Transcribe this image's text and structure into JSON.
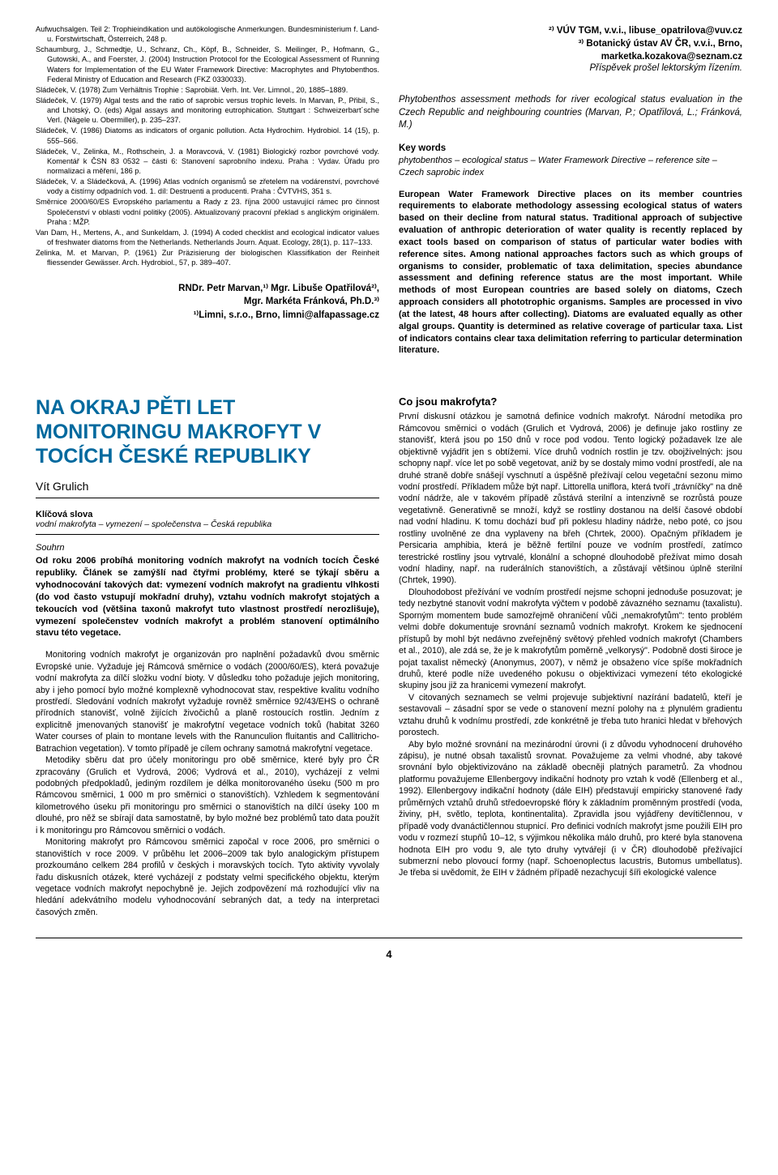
{
  "left_col": {
    "references": [
      "Aufwuchsalgen. Teil 2: Trophieindikation und autökologische Anmerkungen. Bundesministerium f. Land- u. Forstwirtschaft, Österreich, 248 p.",
      "Schaumburg, J., Schmedtje, U., Schranz, Ch., Köpf, B., Schneider, S. Meilinger, P., Hofmann, G., Gutowski, A., and Foerster, J. (2004) Instruction Protocol for the Ecological Assessment of Running Waters for Implementation of the EU Water Framework Directive: Macrophytes and Phytobenthos. Federal Ministry of Education and Research (FKZ 0330033).",
      "Sládeček, V. (1978) Zum Verhältnis Trophie : Saprobiät. Verh. Int. Ver. Limnol., 20, 1885–1889.",
      "Sládeček, V. (1979) Algal tests and the ratio of saprobic versus trophic levels. In Marvan, P., Přibil, S., and Lhotský, O. (eds) Algal assays and monitoring eutrophication. Stuttgart : Schweizerbart´sche Verl. (Nägele u. Obermiller), p. 235–237.",
      "Sládeček, V. (1986) Diatoms as indicators of organic pollution. Acta Hydrochim. Hydrobiol. 14 (15), p. 555–566.",
      "Sládeček, V., Zelinka, M., Rothschein, J. a Moravcová, V. (1981) Biologický rozbor povrchové vody. Komentář k ČSN 83 0532 – části 6: Stanovení saprobního indexu. Praha : Vydav. Úřadu pro normalizaci a měření, 186 p.",
      "Sládeček, V. a Sládečková, A. (1996) Atlas vodních organismů se zřetelem na vodárenství, povrchové vody a čistírny odpadních vod. 1. díl: Destruenti a producenti. Praha : ČVTVHS, 351 s.",
      "Směrnice 2000/60/ES Evropského parlamentu a Rady z 23. října 2000 ustavující rámec pro činnost Společenství v oblasti vodní politiky (2005). Aktualizovaný pracovní překlad s anglickým originálem. Praha : MŽP.",
      "Van Dam, H., Mertens, A., and Sunkeldam, J. (1994) A coded checklist and ecological indicator values of freshwater diatoms from the Netherlands. Netherlands Journ. Aquat. Ecology, 28(1), p. 117–133.",
      "Zelinka, M. et Marvan, P. (1961) Zur Präzisierung der biologischen Klassifikation der Reinheit fliessender Gewässer. Arch. Hydrobiol., 57, p. 389–407."
    ],
    "authors_line1": "RNDr. Petr Marvan,¹⁾ Mgr. Libuše Opatřilová²⁾,",
    "authors_line2": "Mgr. Markéta Fránková, Ph.D.³⁾",
    "authors_line3": "¹⁾Limni, s.r.o., Brno, limni@alfapassage.cz"
  },
  "right_col": {
    "affil1": "²⁾ VÚV TGM, v.v.i., libuse_opatrilova@vuv.cz",
    "affil2": "³⁾ Botanický ústav AV ČR, v.v.i., Brno,",
    "affil3": "marketka.kozakova@seznam.cz",
    "affil4": "Příspěvek prošel lektorským řízením.",
    "eng_title": "Phytobenthos assessment methods for river ecological status evaluation in the Czech Republic and neighbouring countries (Marvan, P.; Opatřilová, L.; Fránková, M.)",
    "keywords_h": "Key words",
    "keywords": "phytobenthos – ecological status – Water Framework Directive – reference site – Czech saprobic index",
    "abstract": "European Water Framework Directive places on its member countries requirements to elaborate methodology assessing ecological status of waters based on their decline from natural status. Traditional approach of subjective evaluation of anthropic deterioration of water quality is recently replaced by exact tools based on comparison of status of particular water bodies with reference sites. Among national approaches factors such as which groups of organisms to consider, problematic of taxa delimitation, species abundance assessment and defining reference status are the most important. While methods of most European countries are based solely on diatoms, Czech approach considers all phototrophic organisms. Samples are processed in vivo (at the latest, 48 hours after collecting). Diatoms are evaluated equally as other algal groups. Quantity is determined as relative coverage of particular taxa. List of indicators contains clear taxa delimitation referring to particular determination literature."
  },
  "article2": {
    "title": "NA OKRAJ PĚTI LET MONITORINGU MAKROFYT V TOCÍCH ČESKÉ REPUBLIKY",
    "author": "Vít Grulich",
    "kw_h": "Klíčová slova",
    "kw": "vodní makrofyta – vymezení – společenstva – Česká republika",
    "souhrn_h": "Souhrn",
    "souhrn": "Od roku 2006 probíhá monitoring vodních makrofyt na vodních tocích České republiky. Článek se zamýšlí nad čtyřmi problémy, které se týkají sběru a vyhodnocování takových dat: vymezení vodních makrofyt na gradientu vlhkosti (do vod často vstupují mokřadní druhy), vztahu vodních makrofyt stojatých a tekoucích vod (většina taxonů makrofyt tuto vlastnost prostředí nerozlišuje), vymezení společenstev vodních makrofyt a problém stanovení optimálního stavu této vegetace.",
    "left_paras": [
      "Monitoring vodních makrofyt je organizován pro naplnění požadavků dvou směrnic Evropské unie. Vyžaduje jej Rámcová směrnice o vodách (2000/60/ES), která považuje vodní makrofyta za dílčí složku vodní bioty. V důsledku toho požaduje jejich monitoring, aby i jeho pomocí bylo možné komplexně vyhodnocovat stav, respektive kvalitu vodního prostředí. Sledování vodních makrofyt vyžaduje rovněž směrnice 92/43/EHS o ochraně přírodních stanovišť, volně žijících živočichů a planě rostoucích rostlin. Jedním z explicitně jmenovaných stanovišť je makrofytní vegetace vodních toků (habitat 3260 Water courses of plain to montane levels with the Ranunculion fluitantis and Callitricho-Batrachion vegetation). V tomto případě je cílem ochrany samotná makrofytní vegetace.",
      "Metodiky sběru dat pro účely monitoringu pro obě směrnice, které byly pro ČR zpracovány (Grulich et Vydrová, 2006; Vydrová et al., 2010), vycházejí z velmi podobných předpokladů, jediným rozdílem je délka monitorovaného úseku (500 m pro Rámcovou směrnici, 1 000 m pro směrnici o stanovištích). Vzhledem k segmentování kilometrového úseku při monitoringu pro směrnici o stanovištích na dílčí úseky 100 m dlouhé, pro něž se sbírají data samostatně, by bylo možné bez problémů tato data použít i k monitoringu pro Rámcovou směrnici o vodách.",
      "Monitoring makrofyt pro Rámcovou směrnici započal v roce 2006, pro směrnici o stanovištích v roce 2009. V průběhu let 2006–2009 tak bylo analogickým přístupem prozkoumáno celkem 284 profilů v českých i moravských tocích. Tyto aktivity vyvolaly řadu diskusních otázek, které vycházejí z podstaty velmi specifického objektu, kterým vegetace vodních makrofyt nepochybně je. Jejich zodpovězení má rozhodující vliv na hledání adekvátního modelu vyhodnocování sebraných dat, a tedy na interpretaci časových změn."
    ],
    "right_h": "Co jsou makrofyta?",
    "right_paras": [
      "První diskusní otázkou je samotná definice vodních makrofyt. Národní metodika pro Rámcovou směrnici o vodách (Grulich et Vydrová, 2006) je definuje jako rostliny ze stanovišť, která jsou po 150 dnů v roce pod vodou. Tento logický požadavek lze ale objektivně vyjádřit jen s obtížemi. Více druhů vodních rostlin je tzv. obojživelných: jsou schopny např. více let po sobě vegetovat, aniž by se dostaly mimo vodní prostředí, ale na druhé straně dobře snášejí vyschnutí a úspěšně přežívají celou vegetační sezonu mimo vodní prostředí. Příkladem může být např. Littorella uniflora, která tvoří „trávníčky\" na dně vodní nádrže, ale v takovém případě zůstává sterilní a intenzivně se rozrůstá pouze vegetativně. Generativně se množí, když se rostliny dostanou na delší časové období nad vodní hladinu. K tomu dochází buď při poklesu hladiny nádrže, nebo poté, co jsou rostliny uvolněné ze dna vyplaveny na břeh (Chrtek, 2000). Opačným příkladem je Persicaria amphibia, která je běžně fertilní pouze ve vodním prostředí, zatímco terestrické rostliny jsou vytrvalé, klonální a schopné dlouhodobě přežívat mimo dosah vodní hladiny, např. na ruderálních stanovištích, a zůstávají většinou úplně sterilní (Chrtek, 1990).",
      "Dlouhodobost přežívání ve vodním prostředí nejsme schopni jednoduše posuzovat; je tedy nezbytné stanovit vodní makrofyta výčtem v podobě závazného seznamu (taxalistu). Sporným momentem bude samozřejmě ohraničení vůči „nemakrofytům\": tento problém velmi dobře dokumentuje srovnání seznamů vodních makrofyt. Krokem ke sjednocení přístupů by mohl být nedávno zveřejněný světový přehled vodních makrofyt (Chambers et al., 2010), ale zdá se, že je k makrofytům poměrně „velkorysý\". Podobně dosti široce je pojat taxalist německý (Anonymus, 2007), v němž je obsaženo více spíše mokřadních druhů, které podle níže uvedeného pokusu o objektivizaci vymezení této ekologické skupiny jsou již za hranicemi vymezení makrofyt.",
      "V citovaných seznamech se velmi projevuje subjektivní nazírání badatelů, kteří je sestavovali – zásadní spor se vede o stanovení mezní polohy na ± plynulém gradientu vztahu druhů k vodnímu prostředí, zde konkrétně je třeba tuto hranici hledat v břehových porostech.",
      "Aby bylo možné srovnání na mezinárodní úrovni (i z důvodu vyhodnocení druhového zápisu), je nutné obsah taxalistů srovnat. Považujeme za velmi vhodné, aby takové srovnání bylo objektivizováno na základě obecněji platných parametrů. Za vhodnou platformu považujeme Ellenbergovy indikační hodnoty pro vztah k vodě (Ellenberg et al., 1992). Ellenbergovy indikační hodnoty (dále EIH) představují empiricky stanovené řady průměrných vztahů druhů středoevropské flóry k základním proměnným prostředí (voda, živiny, pH, světlo, teplota, kontinentalita). Zpravidla jsou vyjádřeny devítičlennou, v případě vody dvanáctičlennou stupnicí. Pro definici vodních makrofyt jsme použili EIH pro vodu v rozmezí stupňů 10–12, s výjimkou několika málo druhů, pro které byla stanovena hodnota EIH pro vodu 9, ale tyto druhy vytvářejí (i v ČR) dlouhodobě přežívající submerzní nebo plovoucí formy (např. Schoenoplectus lacustris, Butomus umbellatus). Je třeba si uvědomit, že EIH v žádném případě nezachycují šíři ekologické valence"
    ]
  },
  "pagenum": "4"
}
